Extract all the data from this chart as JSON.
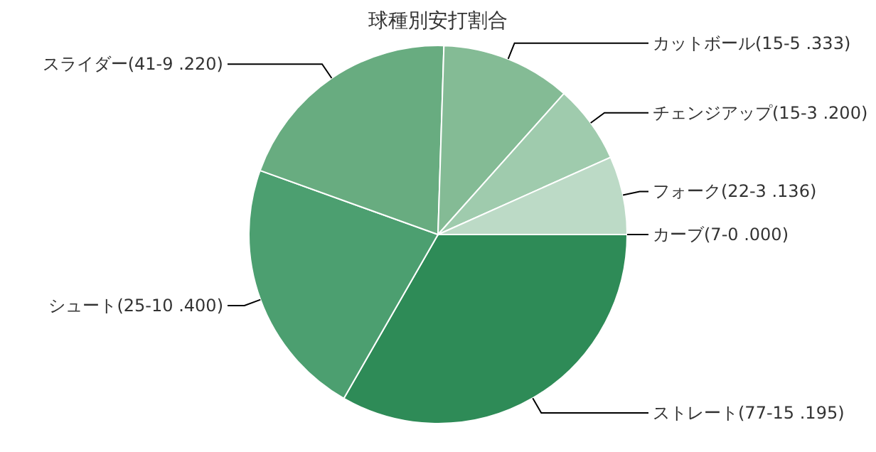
{
  "chart_data": {
    "type": "pie",
    "title": "球種別安打割合",
    "categories": [
      "ストレート(77-15 .195)",
      "シュート(25-10 .400)",
      "スライダー(41-9 .220)",
      "カットボール(15-5 .333)",
      "チェンジアップ(15-3 .200)",
      "フォーク(22-3 .136)",
      "カーブ(7-0 .000)"
    ],
    "values": [
      33.3,
      22.2,
      20,
      11.1,
      6.7,
      6.7,
      0
    ],
    "colors": [
      "#2e8b57",
      "#4c9f70",
      "#68ac80",
      "#84bb95",
      "#9fcbad",
      "#bcdac6",
      "#d4e8da"
    ]
  }
}
